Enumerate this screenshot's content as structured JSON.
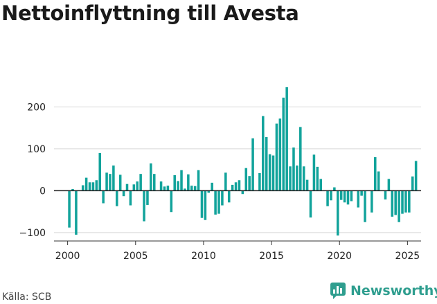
{
  "title": "Nettoinflyttning till Avesta",
  "source": "Källa: SCB",
  "brand": {
    "name": "Newsworthy",
    "icon": "newsworthy-logo-icon",
    "color": "#2f9e8f"
  },
  "colors": {
    "bar": "#12a39b",
    "zero_line": "#222222",
    "grid": "#d8d8d8"
  },
  "chart_data": {
    "type": "bar",
    "x_scale": "time (quarterly)",
    "xlim": [
      1999.0,
      2026.0
    ],
    "ylim": [
      -120,
      260
    ],
    "x_ticks": [
      2000,
      2005,
      2010,
      2015,
      2020,
      2025
    ],
    "x_tick_labels": [
      "2000",
      "2005",
      "2010",
      "2015",
      "2020",
      "2025"
    ],
    "y_ticks": [
      -100,
      0,
      100,
      200
    ],
    "y_tick_labels": [
      "−100",
      "0",
      "100",
      "200"
    ],
    "grid": "horizontal",
    "start_quarter": "2000Q1",
    "values": [
      -88,
      4,
      -105,
      0,
      13,
      31,
      20,
      20,
      25,
      90,
      -30,
      43,
      40,
      60,
      -37,
      38,
      -13,
      16,
      -35,
      15,
      22,
      40,
      -73,
      -34,
      65,
      40,
      0,
      22,
      10,
      12,
      -51,
      37,
      23,
      49,
      5,
      39,
      12,
      11,
      49,
      -65,
      -70,
      -5,
      19,
      -57,
      -55,
      -35,
      43,
      -28,
      14,
      20,
      25,
      -8,
      54,
      35,
      125,
      0,
      42,
      178,
      128,
      87,
      84,
      160,
      172,
      222,
      247,
      58,
      103,
      60,
      152,
      58,
      26,
      -64,
      86,
      57,
      28,
      0,
      -37,
      -23,
      8,
      -107,
      -22,
      -28,
      -33,
      -25,
      0,
      -40,
      -12,
      -75,
      0,
      -52,
      80,
      46,
      0,
      -21,
      28,
      -62,
      -58,
      -75,
      -55,
      -52,
      -52,
      34,
      71
    ]
  }
}
